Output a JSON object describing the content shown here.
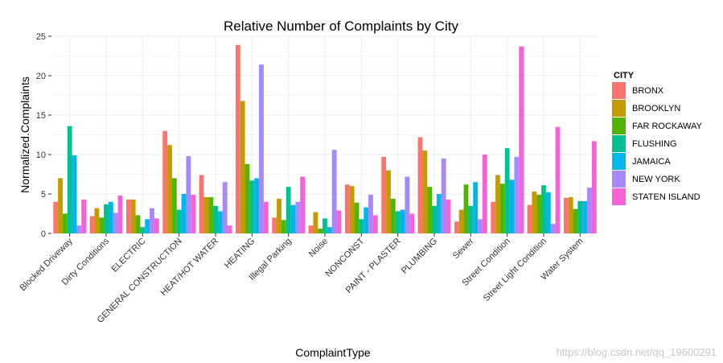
{
  "chart_data": {
    "type": "bar",
    "title": "Relative Number of Complaints by City",
    "xlabel": "ComplaintType",
    "ylabel": "Normalized.Complaints",
    "ylim": [
      0,
      25
    ],
    "yticks": [
      0,
      5,
      10,
      15,
      20,
      25
    ],
    "grid": true,
    "legend_title": "CITY",
    "legend_position": "right",
    "categories": [
      "Blocked Driveway",
      "Dirty Conditions",
      "ELECTRIC",
      "GENERAL CONSTRUCTION",
      "HEAT/HOT WATER",
      "HEATING",
      "Illegal Parking",
      "Noise",
      "NONCONST",
      "PAINT - PLASTER",
      "PLUMBING",
      "Sewer",
      "Street Condition",
      "Street Light Condition",
      "Water System"
    ],
    "series": [
      {
        "name": "BRONX",
        "color": "#F8766D",
        "values": [
          4.0,
          2.2,
          4.3,
          13.0,
          7.4,
          23.9,
          2.0,
          1.0,
          6.2,
          9.7,
          12.2,
          1.5,
          4.0,
          3.6,
          4.5
        ]
      },
      {
        "name": "BROOKLYN",
        "color": "#C49A00",
        "values": [
          7.0,
          3.2,
          4.3,
          11.2,
          4.6,
          16.8,
          4.4,
          2.7,
          6.0,
          8.0,
          10.5,
          3.0,
          7.4,
          5.3,
          4.6
        ]
      },
      {
        "name": "FAR ROCKAWAY",
        "color": "#53B400",
        "values": [
          2.5,
          2.0,
          2.3,
          7.0,
          4.6,
          8.8,
          1.7,
          0.6,
          3.9,
          4.4,
          5.9,
          6.2,
          6.3,
          4.9,
          3.1
        ]
      },
      {
        "name": "FLUSHING",
        "color": "#00C094",
        "values": [
          13.6,
          3.7,
          0.8,
          3.0,
          3.5,
          6.7,
          5.9,
          1.9,
          1.8,
          2.8,
          3.5,
          3.5,
          10.8,
          6.1,
          4.1
        ]
      },
      {
        "name": "JAMAICA",
        "color": "#00B6EB",
        "values": [
          9.9,
          4.0,
          1.8,
          5.0,
          2.8,
          7.0,
          3.6,
          0.8,
          3.3,
          3.0,
          5.0,
          6.5,
          6.8,
          5.2,
          4.1
        ]
      },
      {
        "name": "NEW YORK",
        "color": "#A58AFF",
        "values": [
          1.0,
          2.6,
          3.2,
          9.8,
          6.5,
          21.4,
          4.0,
          10.6,
          4.9,
          7.2,
          9.5,
          1.8,
          9.7,
          1.2,
          5.8
        ]
      },
      {
        "name": "STATEN ISLAND",
        "color": "#FB61D7",
        "values": [
          4.3,
          4.8,
          1.9,
          4.9,
          1.0,
          4.0,
          7.2,
          2.9,
          2.3,
          2.5,
          4.3,
          10.0,
          23.7,
          13.5,
          11.7
        ]
      }
    ]
  },
  "watermark": "https://blog.csdn.net/qq_19600291"
}
